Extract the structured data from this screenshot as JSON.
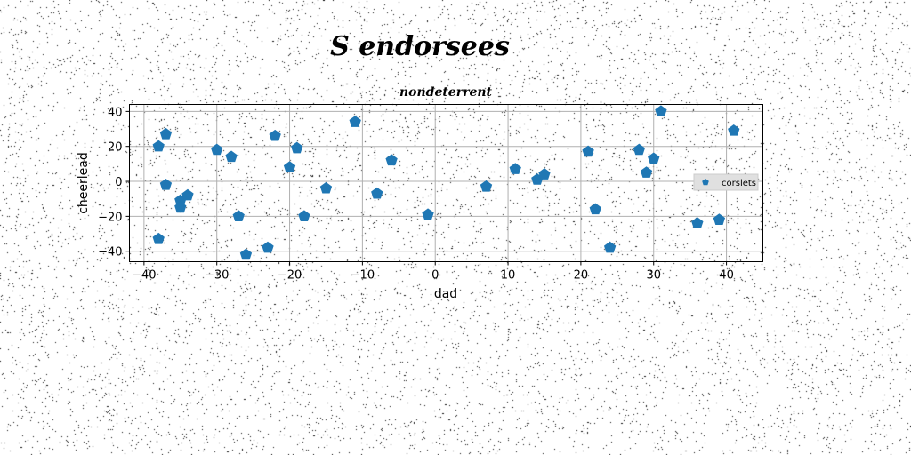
{
  "chart_data": {
    "type": "scatter",
    "title": "S endorsees",
    "subtitle": "nondeterrent",
    "xlabel": "dad",
    "ylabel": "cheerlead",
    "xlim": [
      -42,
      45
    ],
    "ylim": [
      -46,
      44
    ],
    "xticks": [
      -40,
      -30,
      -20,
      -10,
      0,
      10,
      20,
      30,
      40
    ],
    "yticks": [
      -40,
      -20,
      0,
      20,
      40
    ],
    "grid": true,
    "legend_position": "right",
    "marker": "pentagon",
    "series": [
      {
        "name": "corslets",
        "color": "#1f77b4",
        "points": [
          {
            "x": -38,
            "y": 20
          },
          {
            "x": -37,
            "y": 27
          },
          {
            "x": -37,
            "y": -2
          },
          {
            "x": -38,
            "y": -33
          },
          {
            "x": -35,
            "y": -11
          },
          {
            "x": -35,
            "y": -15
          },
          {
            "x": -34,
            "y": -8
          },
          {
            "x": -30,
            "y": 18
          },
          {
            "x": -28,
            "y": 14
          },
          {
            "x": -27,
            "y": -20
          },
          {
            "x": -26,
            "y": -42
          },
          {
            "x": -23,
            "y": -38
          },
          {
            "x": -22,
            "y": 26
          },
          {
            "x": -20,
            "y": 8
          },
          {
            "x": -19,
            "y": 19
          },
          {
            "x": -18,
            "y": -20
          },
          {
            "x": -15,
            "y": -4
          },
          {
            "x": -11,
            "y": 34
          },
          {
            "x": -8,
            "y": -7
          },
          {
            "x": -6,
            "y": 12
          },
          {
            "x": -1,
            "y": -19
          },
          {
            "x": 7,
            "y": -3
          },
          {
            "x": 11,
            "y": 7
          },
          {
            "x": 14,
            "y": 1
          },
          {
            "x": 15,
            "y": 4
          },
          {
            "x": 21,
            "y": 17
          },
          {
            "x": 22,
            "y": -16
          },
          {
            "x": 24,
            "y": -38
          },
          {
            "x": 28,
            "y": 18
          },
          {
            "x": 29,
            "y": 5
          },
          {
            "x": 30,
            "y": 13
          },
          {
            "x": 31,
            "y": 40
          },
          {
            "x": 36,
            "y": -24
          },
          {
            "x": 39,
            "y": -22
          },
          {
            "x": 41,
            "y": 29
          }
        ]
      }
    ]
  }
}
